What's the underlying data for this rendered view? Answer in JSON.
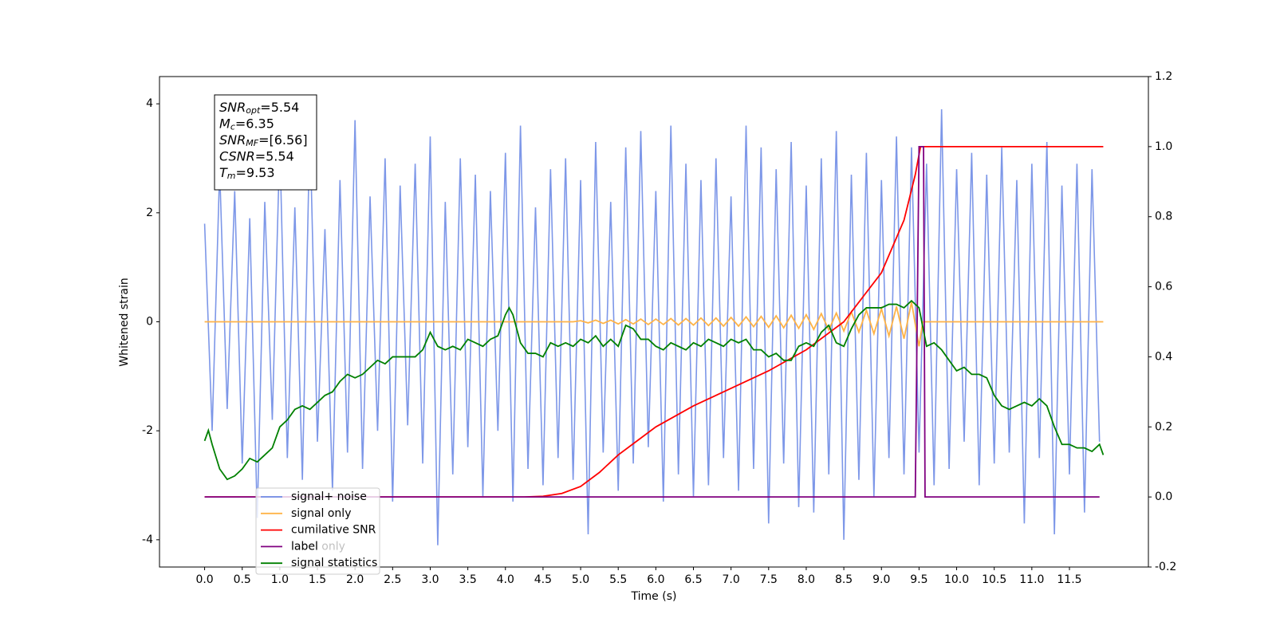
{
  "chart_data": {
    "type": "line",
    "xlabel": "Time (s)",
    "ylabel": "Whitened strain",
    "xlim": [
      -0.6,
      12.55
    ],
    "ylim": [
      -4.5,
      4.5
    ],
    "y2lim": [
      -0.2,
      1.2
    ],
    "xticks": [
      {
        "value": 0,
        "label": "0.0"
      },
      0.5,
      {
        "value": 1,
        "label": "1.0"
      },
      1.5,
      {
        "value": 2,
        "label": "2.0"
      },
      2.5,
      {
        "value": 3,
        "label": "3.0"
      },
      3.5,
      {
        "value": 4,
        "label": "4.0"
      },
      4.5,
      {
        "value": 5,
        "label": "5.0"
      },
      5.5,
      {
        "value": 6,
        "label": "6.0"
      },
      6.5,
      {
        "value": 7,
        "label": "7.0"
      },
      7.5,
      {
        "value": 8,
        "label": "8.0"
      },
      8.5,
      {
        "value": 9,
        "label": "9.0"
      },
      9.5,
      {
        "value": 10,
        "label": "10.0"
      },
      10.5,
      {
        "value": 11,
        "label": "11.0"
      },
      11.5
    ],
    "yticks": [
      -4,
      -2,
      0,
      2,
      4
    ],
    "y2ticks": [
      -0.2,
      {
        "value": 0,
        "label": "0.0"
      },
      0.2,
      0.4,
      0.6,
      0.8,
      {
        "value": 1,
        "label": "1.0"
      },
      1.2
    ],
    "legend": "lower left",
    "legend_overlay_texts": [
      "label only"
    ],
    "stats": [
      {
        "symbol": "SNR",
        "sub": "opt",
        "text": "=5.54"
      },
      {
        "symbol": "M",
        "sub": "c",
        "text": "=6.35"
      },
      {
        "symbol": "SNR",
        "sub": "MF",
        "text": "=[6.56]"
      },
      {
        "symbol": "CSNR",
        "sub": "",
        "text": "=5.54"
      },
      {
        "symbol": "T",
        "sub": "m",
        "text": "=9.53"
      }
    ],
    "series": [
      {
        "name": "signal+ noise",
        "color": "#6f8ce6",
        "axis": "y",
        "x": [
          0,
          0.1,
          0.2,
          0.3,
          0.4,
          0.5,
          0.6,
          0.7,
          0.8,
          0.9,
          1,
          1.1,
          1.2,
          1.3,
          1.4,
          1.5,
          1.6,
          1.7,
          1.8,
          1.9,
          2,
          2.1,
          2.2,
          2.3,
          2.4,
          2.5,
          2.6,
          2.7,
          2.8,
          2.9,
          3,
          3.1,
          3.2,
          3.3,
          3.4,
          3.5,
          3.6,
          3.7,
          3.8,
          3.9,
          4,
          4.1,
          4.2,
          4.3,
          4.4,
          4.5,
          4.6,
          4.7,
          4.8,
          4.9,
          5,
          5.1,
          5.2,
          5.3,
          5.4,
          5.5,
          5.6,
          5.7,
          5.8,
          5.9,
          6,
          6.1,
          6.2,
          6.3,
          6.4,
          6.5,
          6.6,
          6.7,
          6.8,
          6.9,
          7,
          7.1,
          7.2,
          7.3,
          7.4,
          7.5,
          7.6,
          7.7,
          7.8,
          7.9,
          8,
          8.1,
          8.2,
          8.3,
          8.4,
          8.5,
          8.6,
          8.7,
          8.8,
          8.9,
          9,
          9.1,
          9.2,
          9.3,
          9.4,
          9.5,
          9.6,
          9.7,
          9.8,
          9.9,
          10,
          10.1,
          10.2,
          10.3,
          10.4,
          10.5,
          10.6,
          10.7,
          10.8,
          10.9,
          11,
          11.1,
          11.2,
          11.3,
          11.4,
          11.5,
          11.6,
          11.7,
          11.8,
          11.9
        ],
        "values": [
          1.8,
          -2.0,
          2.8,
          -1.6,
          2.4,
          -2.6,
          1.9,
          -3.6,
          2.2,
          -1.8,
          3.3,
          -2.5,
          2.1,
          -2.9,
          3.6,
          -2.2,
          1.7,
          -3.1,
          2.6,
          -2.4,
          3.7,
          -2.7,
          2.3,
          -2.0,
          3.0,
          -3.3,
          2.5,
          -1.9,
          2.9,
          -2.6,
          3.4,
          -4.1,
          2.2,
          -2.8,
          3.0,
          -2.3,
          2.7,
          -3.2,
          2.4,
          -2.0,
          3.1,
          -3.3,
          3.6,
          -2.7,
          2.1,
          -3.0,
          2.8,
          -2.5,
          3.0,
          -2.9,
          2.6,
          -3.9,
          3.3,
          -2.4,
          2.2,
          -3.1,
          3.2,
          -2.6,
          3.5,
          -2.3,
          2.4,
          -3.3,
          3.6,
          -2.8,
          2.9,
          -3.2,
          2.6,
          -3.0,
          3.0,
          -2.5,
          2.3,
          -3.1,
          3.6,
          -2.7,
          3.2,
          -3.7,
          2.8,
          -2.6,
          3.3,
          -3.4,
          2.5,
          -3.5,
          3.0,
          -2.8,
          3.5,
          -4.0,
          2.7,
          -2.9,
          3.1,
          -3.2,
          2.6,
          -2.5,
          3.4,
          -2.8,
          3.2,
          -2.4,
          2.9,
          -3.0,
          3.9,
          -2.7,
          2.8,
          -2.2,
          3.1,
          -3.0,
          2.7,
          -2.6,
          3.2,
          -2.4,
          2.6,
          -3.7,
          2.9,
          -2.5,
          3.3,
          -3.9,
          2.5,
          -2.8,
          2.9,
          -3.5,
          2.8,
          -2.2
        ]
      },
      {
        "name": "signal only",
        "color": "#ffb347",
        "axis": "y",
        "x": [
          0,
          4.9,
          5.0,
          5.1,
          5.2,
          5.3,
          5.4,
          5.5,
          5.6,
          5.7,
          5.8,
          5.9,
          6.0,
          6.1,
          6.2,
          6.3,
          6.4,
          6.5,
          6.6,
          6.7,
          6.8,
          6.9,
          7.0,
          7.1,
          7.2,
          7.3,
          7.4,
          7.5,
          7.6,
          7.7,
          7.8,
          7.9,
          8.0,
          8.1,
          8.2,
          8.3,
          8.4,
          8.5,
          8.6,
          8.7,
          8.8,
          8.9,
          9.0,
          9.1,
          9.2,
          9.3,
          9.4,
          9.5,
          9.55,
          11.95
        ],
        "values": [
          0,
          0,
          0.02,
          -0.02,
          0.03,
          -0.03,
          0.03,
          -0.04,
          0.04,
          -0.04,
          0.05,
          -0.05,
          0.05,
          -0.05,
          0.06,
          -0.06,
          0.06,
          -0.06,
          0.07,
          -0.07,
          0.07,
          -0.08,
          0.08,
          -0.08,
          0.09,
          -0.09,
          0.1,
          -0.1,
          0.11,
          -0.11,
          0.12,
          -0.12,
          0.13,
          -0.14,
          0.15,
          -0.15,
          0.16,
          -0.17,
          0.18,
          -0.19,
          0.21,
          -0.22,
          0.24,
          -0.26,
          0.28,
          -0.31,
          0.36,
          -0.45,
          0,
          0
        ]
      },
      {
        "name": "cumilative SNR",
        "color": "#ff0000",
        "axis": "y2",
        "x": [
          0,
          4.25,
          4.5,
          4.75,
          5.0,
          5.25,
          5.5,
          5.75,
          6.0,
          6.5,
          7.0,
          7.5,
          8.0,
          8.5,
          9.0,
          9.3,
          9.45,
          9.52,
          11.95
        ],
        "values": [
          0,
          0,
          0.002,
          0.01,
          0.03,
          0.07,
          0.12,
          0.16,
          0.2,
          0.26,
          0.31,
          0.36,
          0.42,
          0.5,
          0.64,
          0.79,
          0.92,
          1.0,
          1.0
        ]
      },
      {
        "name": "label",
        "color": "#800080",
        "axis": "y2",
        "x": [
          0,
          9.45,
          9.5,
          9.56,
          9.58,
          11.9
        ],
        "values": [
          0,
          0,
          1,
          1,
          0,
          0
        ]
      },
      {
        "name": "signal statistics",
        "color": "#008000",
        "axis": "y2",
        "x": [
          0,
          0.05,
          0.1,
          0.2,
          0.3,
          0.4,
          0.5,
          0.6,
          0.7,
          0.8,
          0.9,
          1.0,
          1.1,
          1.2,
          1.3,
          1.4,
          1.5,
          1.6,
          1.7,
          1.8,
          1.9,
          2.0,
          2.1,
          2.2,
          2.3,
          2.4,
          2.5,
          2.6,
          2.7,
          2.8,
          2.9,
          3.0,
          3.1,
          3.2,
          3.3,
          3.4,
          3.5,
          3.6,
          3.7,
          3.8,
          3.9,
          4.0,
          4.05,
          4.1,
          4.2,
          4.3,
          4.4,
          4.5,
          4.6,
          4.7,
          4.8,
          4.9,
          5.0,
          5.1,
          5.2,
          5.3,
          5.4,
          5.5,
          5.6,
          5.7,
          5.8,
          5.9,
          6.0,
          6.1,
          6.2,
          6.3,
          6.4,
          6.5,
          6.6,
          6.7,
          6.8,
          6.9,
          7.0,
          7.1,
          7.2,
          7.3,
          7.4,
          7.5,
          7.6,
          7.7,
          7.8,
          7.9,
          8.0,
          8.1,
          8.2,
          8.3,
          8.4,
          8.5,
          8.6,
          8.7,
          8.8,
          8.9,
          9.0,
          9.1,
          9.2,
          9.3,
          9.4,
          9.5,
          9.6,
          9.7,
          9.8,
          9.9,
          10.0,
          10.1,
          10.2,
          10.3,
          10.4,
          10.5,
          10.6,
          10.7,
          10.8,
          10.9,
          11.0,
          11.1,
          11.2,
          11.3,
          11.4,
          11.5,
          11.6,
          11.7,
          11.8,
          11.9,
          11.95
        ],
        "values": [
          0.16,
          0.19,
          0.15,
          0.08,
          0.05,
          0.06,
          0.08,
          0.11,
          0.1,
          0.12,
          0.14,
          0.2,
          0.22,
          0.25,
          0.26,
          0.25,
          0.27,
          0.29,
          0.3,
          0.33,
          0.35,
          0.34,
          0.35,
          0.37,
          0.39,
          0.38,
          0.4,
          0.4,
          0.4,
          0.4,
          0.42,
          0.47,
          0.43,
          0.42,
          0.43,
          0.42,
          0.45,
          0.44,
          0.43,
          0.45,
          0.46,
          0.52,
          0.54,
          0.52,
          0.44,
          0.41,
          0.41,
          0.4,
          0.44,
          0.43,
          0.44,
          0.43,
          0.45,
          0.44,
          0.46,
          0.43,
          0.45,
          0.43,
          0.49,
          0.48,
          0.45,
          0.45,
          0.43,
          0.42,
          0.44,
          0.43,
          0.42,
          0.44,
          0.43,
          0.45,
          0.44,
          0.43,
          0.45,
          0.44,
          0.45,
          0.42,
          0.42,
          0.4,
          0.41,
          0.39,
          0.39,
          0.43,
          0.44,
          0.43,
          0.47,
          0.49,
          0.44,
          0.43,
          0.48,
          0.52,
          0.54,
          0.54,
          0.54,
          0.55,
          0.55,
          0.54,
          0.56,
          0.54,
          0.43,
          0.44,
          0.42,
          0.39,
          0.36,
          0.37,
          0.35,
          0.35,
          0.34,
          0.29,
          0.26,
          0.25,
          0.26,
          0.27,
          0.26,
          0.28,
          0.26,
          0.2,
          0.15,
          0.15,
          0.14,
          0.14,
          0.13,
          0.15,
          0.12
        ]
      }
    ]
  }
}
